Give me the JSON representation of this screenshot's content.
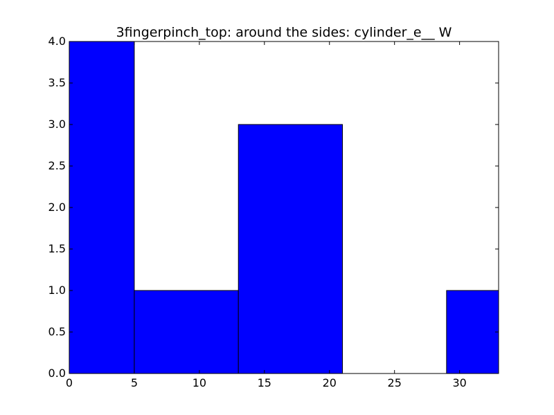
{
  "chart_data": {
    "type": "bar",
    "title": "3fingerpinch_top: around the sides: cylinder_e__ W",
    "xlabel": "",
    "ylabel": "",
    "xlim": [
      0,
      33
    ],
    "ylim": [
      0,
      4.0
    ],
    "bins": [
      {
        "x0": 0,
        "x1": 5,
        "value": 4
      },
      {
        "x0": 5,
        "x1": 13,
        "value": 1
      },
      {
        "x0": 13,
        "x1": 21,
        "value": 3
      },
      {
        "x0": 21,
        "x1": 29,
        "value": 0
      },
      {
        "x0": 29,
        "x1": 33,
        "value": 1
      }
    ],
    "x_ticks": [
      0,
      5,
      10,
      15,
      20,
      25,
      30
    ],
    "x_tick_labels": [
      "0",
      "5",
      "10",
      "15",
      "20",
      "25",
      "30"
    ],
    "y_ticks": [
      0,
      0.5,
      1.0,
      1.5,
      2.0,
      2.5,
      3.0,
      3.5,
      4.0
    ],
    "y_tick_labels": [
      "0.0",
      "0.5",
      "1.0",
      "1.5",
      "2.0",
      "2.5",
      "3.0",
      "3.5",
      "4.0"
    ],
    "bar_color": "#0000ff",
    "edge_color": "#000000",
    "grid": false,
    "legend": "none"
  }
}
